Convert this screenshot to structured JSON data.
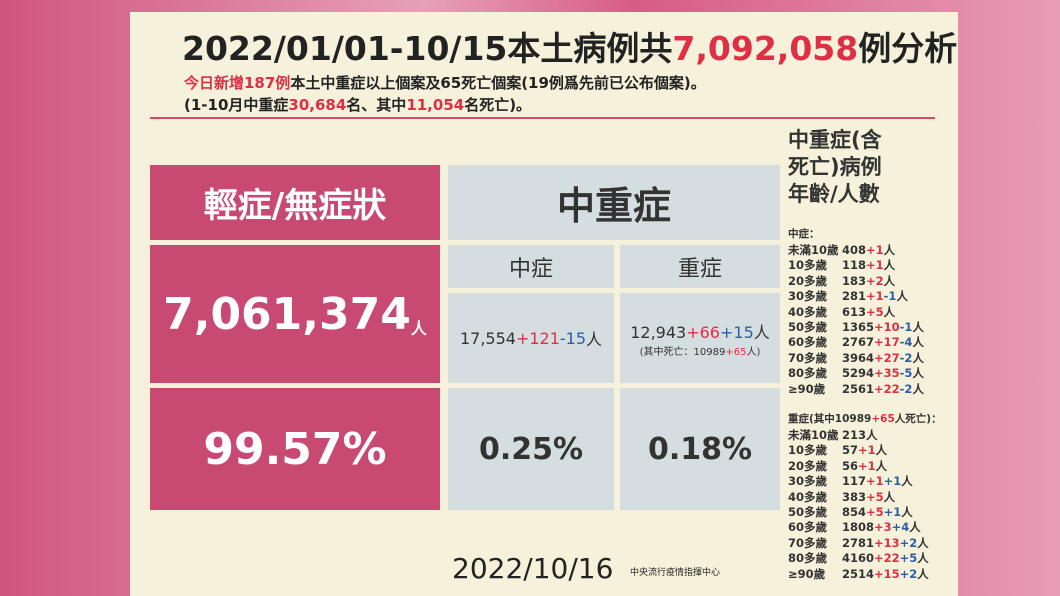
{
  "header": {
    "title": [
      "2022/01/01-10/15本土病例共",
      "7,092,058",
      "例分析"
    ],
    "line1": [
      "今日新增187例",
      "本土中重症以上個案及65死亡個案(19例爲先前已公布個案)。"
    ],
    "line2": [
      "(1-10月中重症",
      "30,684",
      "名、其中",
      "11,054",
      "名死亡)。"
    ]
  },
  "table": {
    "mild": {
      "header": "輕症/無症狀",
      "value": "7,061,374",
      "unit": "人",
      "percent": "99.57%"
    },
    "severe_group": {
      "header": "中重症",
      "moderate": {
        "header": "中症",
        "value": [
          "17,554",
          "+121",
          "-15",
          "人"
        ],
        "percent": "0.25%"
      },
      "severe": {
        "header": "重症",
        "value": [
          "12,943",
          "+66",
          "+15",
          "人"
        ],
        "note": [
          "(其中死亡：10989",
          "+65",
          "人)"
        ],
        "percent": "0.18%"
      }
    }
  },
  "side": {
    "title": [
      "中重症(含",
      "死亡)病例",
      "年齡/人數"
    ],
    "moderate": {
      "label": [
        "中症："
      ],
      "rows": [
        {
          "age": "未滿10歲",
          "count": "408",
          "changes": [
            "+1"
          ],
          "unit": "人"
        },
        {
          "age": "10多歲",
          "count": "118",
          "changes": [
            "+1"
          ],
          "unit": "人"
        },
        {
          "age": "20多歲",
          "count": "183",
          "changes": [
            "+2"
          ],
          "unit": "人"
        },
        {
          "age": "30多歲",
          "count": "281",
          "changes": [
            "+1",
            "-1"
          ],
          "unit": "人"
        },
        {
          "age": "40多歲",
          "count": "613",
          "changes": [
            "+5"
          ],
          "unit": "人"
        },
        {
          "age": "50多歲",
          "count": "1365",
          "changes": [
            "+10",
            "-1"
          ],
          "unit": "人"
        },
        {
          "age": "60多歲",
          "count": "2767",
          "changes": [
            "+17",
            "-4"
          ],
          "unit": "人"
        },
        {
          "age": "70多歲",
          "count": "3964",
          "changes": [
            "+27",
            "-2"
          ],
          "unit": "人"
        },
        {
          "age": "80多歲",
          "count": "5294",
          "changes": [
            "+35",
            "-5"
          ],
          "unit": "人"
        },
        {
          "age": "≥90歲",
          "count": "2561",
          "changes": [
            "+22",
            "-2"
          ],
          "unit": "人"
        }
      ]
    },
    "severe": {
      "label": [
        "重症(其中10989",
        "+65",
        "人死亡)："
      ],
      "rows": [
        {
          "age": "未滿10歲",
          "count": "213",
          "changes": [],
          "unit": "人"
        },
        {
          "age": "10多歲",
          "count": "57",
          "changes": [
            "+1"
          ],
          "unit": "人"
        },
        {
          "age": "20多歲",
          "count": "56",
          "changes": [
            "+1"
          ],
          "unit": "人"
        },
        {
          "age": "30多歲",
          "count": "117",
          "changes": [
            "+1",
            "+1"
          ],
          "unit": "人"
        },
        {
          "age": "40多歲",
          "count": "383",
          "changes": [
            "+5"
          ],
          "unit": "人"
        },
        {
          "age": "50多歲",
          "count": "854",
          "changes": [
            "+5",
            "+1"
          ],
          "unit": "人"
        },
        {
          "age": "60多歲",
          "count": "1808",
          "changes": [
            "+3",
            "+4"
          ],
          "unit": "人"
        },
        {
          "age": "70多歲",
          "count": "2781",
          "changes": [
            "+13",
            "+2"
          ],
          "unit": "人"
        },
        {
          "age": "80多歲",
          "count": "4160",
          "changes": [
            "+22",
            "+5"
          ],
          "unit": "人"
        },
        {
          "age": "≥90歲",
          "count": "2514",
          "changes": [
            "+15",
            "+2"
          ],
          "unit": "人"
        }
      ]
    }
  },
  "footer": {
    "date": "2022/10/16",
    "source": "中央流行疫情指揮中心"
  }
}
